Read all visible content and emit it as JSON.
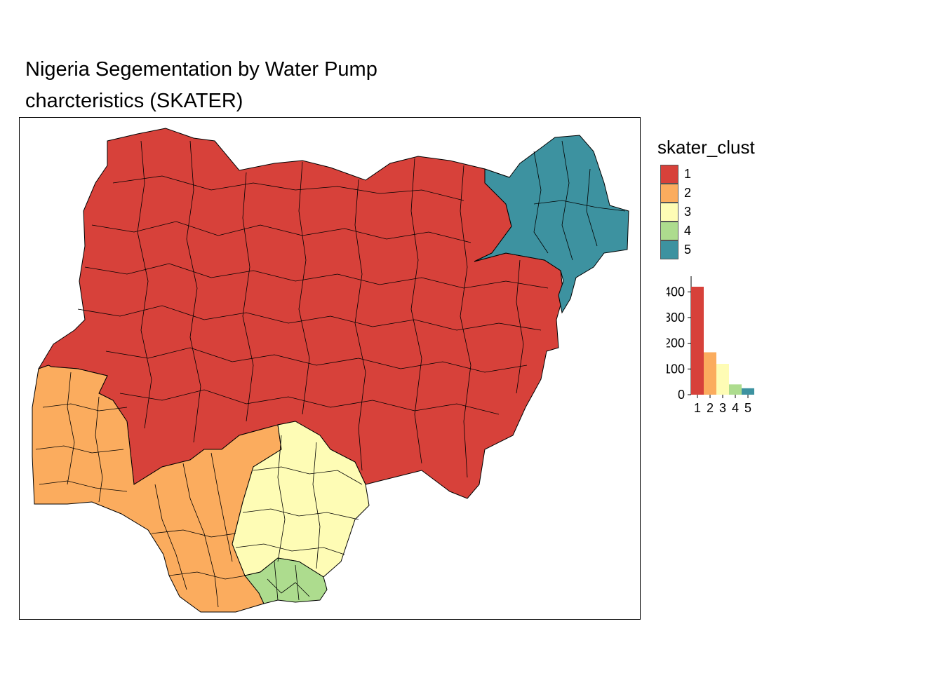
{
  "title": {
    "line1": "Nigeria Segementation by Water Pump",
    "line2": "charcteristics (SKATER)"
  },
  "legend": {
    "title": "skater_clust",
    "items": [
      {
        "label": "1",
        "color": "#d7413a"
      },
      {
        "label": "2",
        "color": "#fbac5e"
      },
      {
        "label": "3",
        "color": "#fefcb5"
      },
      {
        "label": "4",
        "color": "#addc8e"
      },
      {
        "label": "5",
        "color": "#3d92a0"
      }
    ]
  },
  "chart_data": {
    "type": "bar",
    "categories": [
      "1",
      "2",
      "3",
      "4",
      "5"
    ],
    "values": [
      420,
      165,
      120,
      40,
      25
    ],
    "ylim": [
      0,
      450
    ],
    "yticks": [
      "0",
      "100",
      "200",
      "300",
      "400"
    ],
    "colors": [
      "#d7413a",
      "#fbac5e",
      "#fefcb5",
      "#addc8e",
      "#3d92a0"
    ]
  },
  "map": {
    "border_color": "#000000",
    "regions": [
      {
        "cluster": "1",
        "color": "#d7413a"
      },
      {
        "cluster": "2",
        "color": "#fbac5e"
      },
      {
        "cluster": "3",
        "color": "#fefcb5"
      },
      {
        "cluster": "4",
        "color": "#addc8e"
      },
      {
        "cluster": "5",
        "color": "#3d92a0"
      }
    ]
  }
}
